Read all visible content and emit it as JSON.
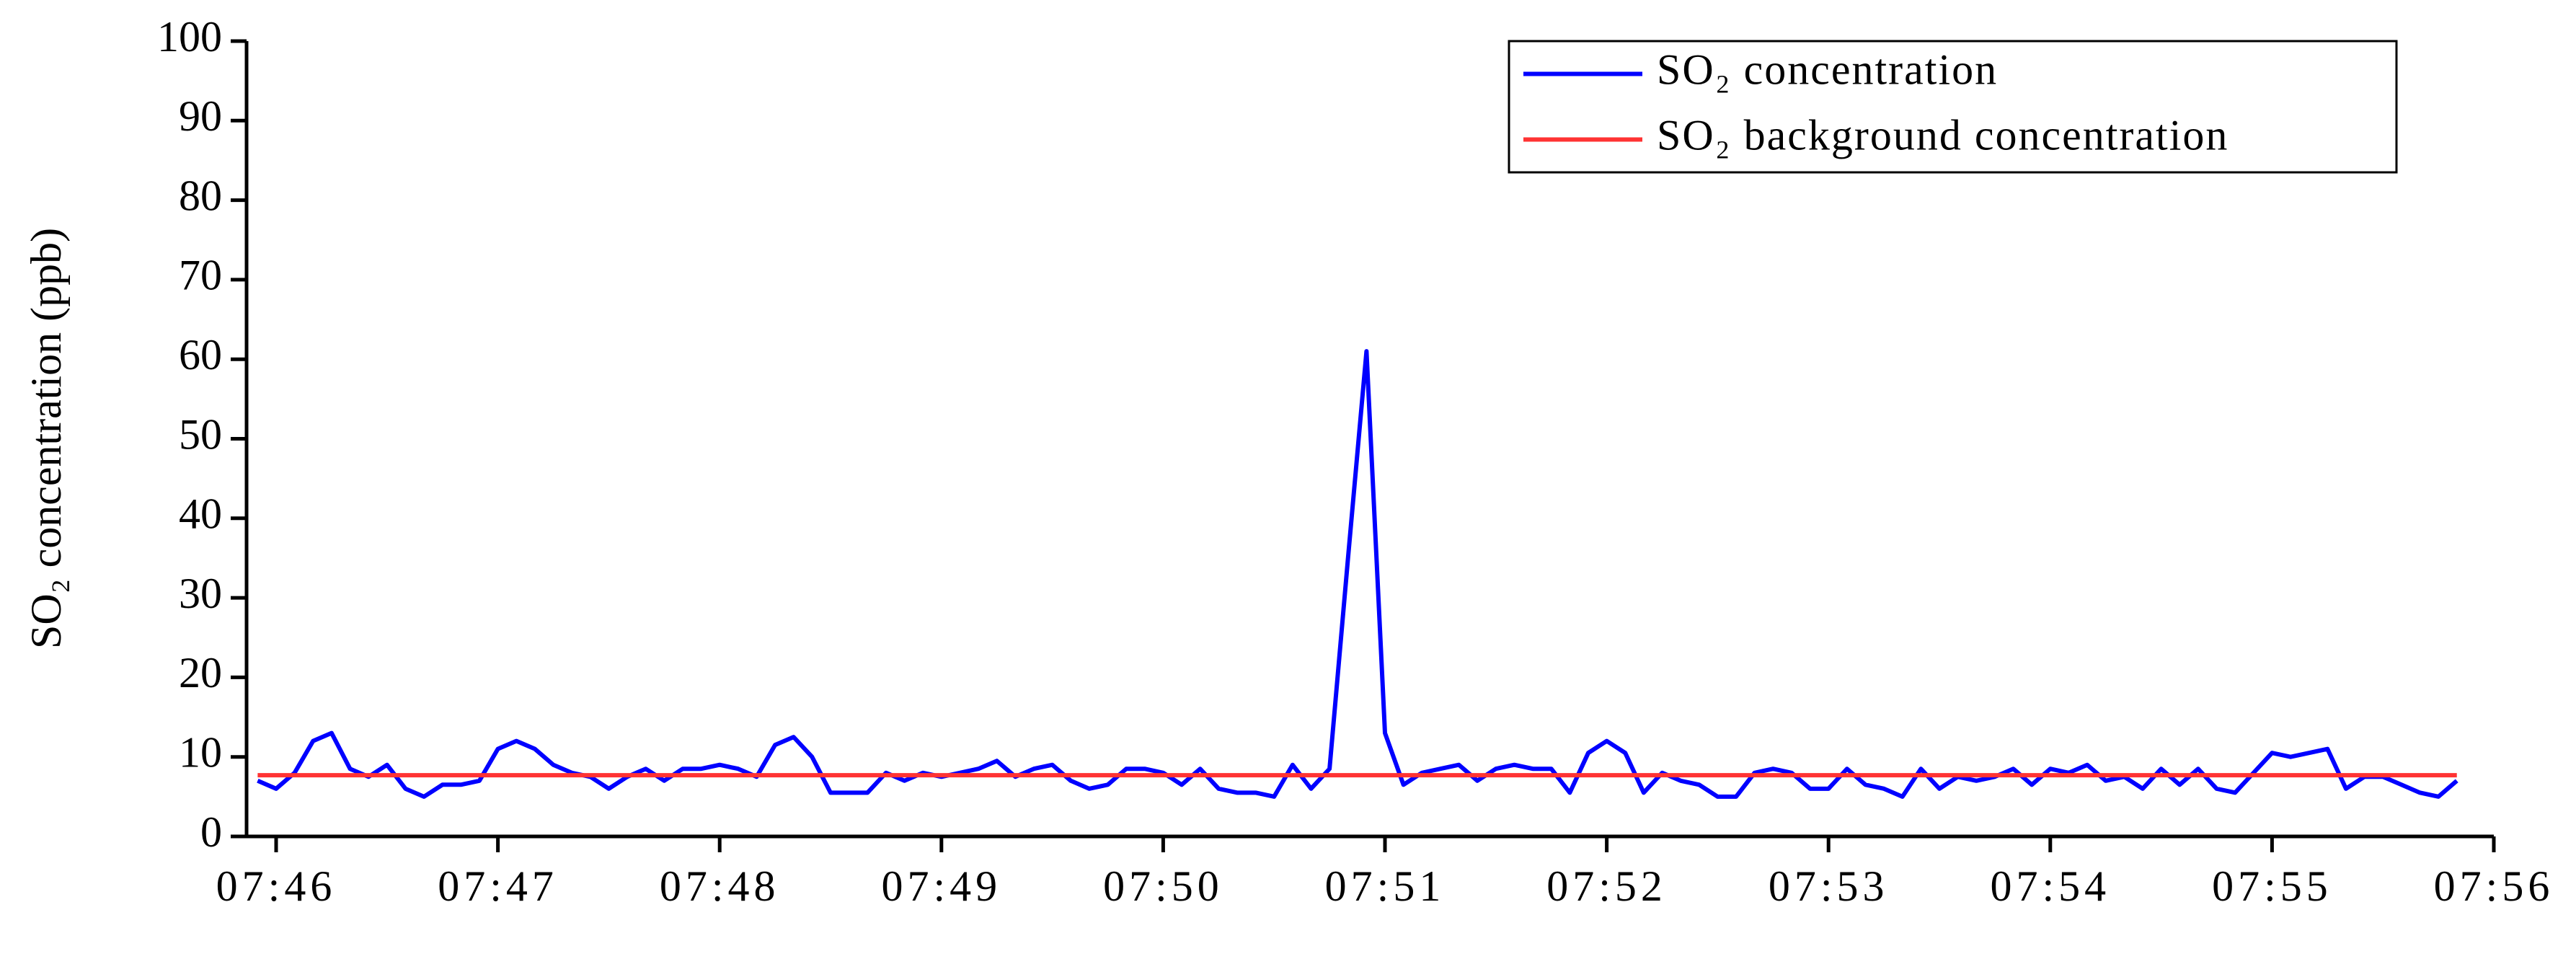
{
  "chart_data": {
    "type": "line",
    "ylabel": "SO₂ concentration (ppb)",
    "x": [
      -5,
      0,
      5,
      10,
      15,
      20,
      25,
      30,
      35,
      40,
      45,
      50,
      55,
      60,
      65,
      70,
      75,
      80,
      85,
      90,
      95,
      100,
      105,
      110,
      115,
      120,
      125,
      130,
      135,
      140,
      145,
      150,
      155,
      160,
      165,
      170,
      175,
      180,
      185,
      190,
      195,
      200,
      205,
      210,
      215,
      220,
      225,
      230,
      235,
      240,
      245,
      250,
      255,
      260,
      265,
      270,
      275,
      280,
      285,
      290,
      295,
      300,
      305,
      310,
      315,
      320,
      325,
      330,
      335,
      340,
      345,
      350,
      355,
      360,
      365,
      370,
      375,
      380,
      385,
      390,
      395,
      400,
      405,
      410,
      415,
      420,
      425,
      430,
      435,
      440,
      445,
      450,
      455,
      460,
      465,
      470,
      475,
      480,
      485,
      490,
      495,
      500,
      505,
      510,
      515,
      520,
      525,
      530,
      535,
      540,
      545,
      550,
      555,
      560,
      565,
      570,
      575,
      580,
      585,
      590
    ],
    "series": [
      {
        "name": "SO₂ concentration",
        "color": "#0000ff",
        "values": [
          7,
          6,
          8,
          12,
          13,
          8.5,
          7.5,
          9,
          6,
          5,
          6.5,
          6.5,
          7,
          11,
          12,
          11,
          9,
          8,
          7.5,
          6,
          7.5,
          8.5,
          7,
          8.5,
          8.5,
          9,
          8.5,
          7.5,
          11.5,
          12.5,
          10,
          5.5,
          5.5,
          5.5,
          8,
          7,
          8,
          7.5,
          8,
          8.5,
          9.5,
          7.5,
          8.5,
          9,
          7,
          6,
          6.5,
          8.5,
          8.5,
          8,
          6.5,
          8.5,
          6,
          5.5,
          5.5,
          5,
          9,
          6,
          8.5,
          35,
          61,
          13,
          6.5,
          8,
          8.5,
          9,
          7,
          8.5,
          9,
          8.5,
          8.5,
          5.5,
          10.5,
          12,
          10.5,
          5.5,
          8,
          7,
          6.5,
          5,
          5,
          8,
          8.5,
          8,
          6,
          6,
          8.5,
          6.5,
          6,
          5,
          8.5,
          6,
          7.5,
          7,
          7.5,
          8.5,
          6.5,
          8.5,
          8,
          9,
          7,
          7.5,
          6,
          8.5,
          6.5,
          8.5,
          6,
          5.5,
          8,
          10.5,
          10,
          10.5,
          11,
          6,
          7.5,
          7.5,
          6.5,
          5.5,
          5,
          7
        ]
      },
      {
        "name": "SO₂ background concentration",
        "color": "#ff3333",
        "x": [
          -5,
          590
        ],
        "values": [
          7.7,
          7.7
        ]
      }
    ],
    "xlim": [
      -8,
      600
    ],
    "xticks": [
      {
        "value": 0,
        "label": "07:46"
      },
      {
        "value": 60,
        "label": "07:47"
      },
      {
        "value": 120,
        "label": "07:48"
      },
      {
        "value": 180,
        "label": "07:49"
      },
      {
        "value": 240,
        "label": "07:50"
      },
      {
        "value": 300,
        "label": "07:51"
      },
      {
        "value": 360,
        "label": "07:52"
      },
      {
        "value": 420,
        "label": "07:53"
      },
      {
        "value": 480,
        "label": "07:54"
      },
      {
        "value": 540,
        "label": "07:55"
      },
      {
        "value": 600,
        "label": "07:56"
      }
    ],
    "ylim": [
      0,
      100
    ],
    "yticks": [
      0,
      10,
      20,
      30,
      40,
      50,
      60,
      70,
      80,
      90,
      100
    ],
    "legend": "upper right"
  }
}
